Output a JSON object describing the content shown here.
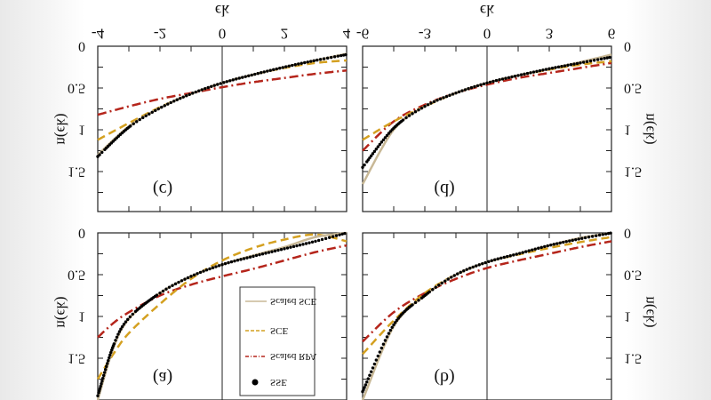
{
  "orientation": "vertically mirrored",
  "colors": {
    "sse": "#000000",
    "scaled_sce": "#c8b896",
    "sce": "#d4a020",
    "scaled_rpa": "#b5251b"
  },
  "legend": {
    "placement": "inside panel (a)",
    "items": [
      {
        "label": "Scaled SCE",
        "style": "solid",
        "color": "#c8b896"
      },
      {
        "label": "SCE",
        "style": "dashed",
        "color": "#d4a020"
      },
      {
        "label": "Scaled RPA",
        "style": "dash-dot",
        "color": "#b5251b"
      },
      {
        "label": "SSE",
        "style": "dots",
        "color": "#000000"
      }
    ]
  },
  "chart_data": [
    {
      "type": "line",
      "panel": "(c)",
      "xlabel": "ϵk",
      "ylabel": "n(ϵk)",
      "xlim": [
        -4,
        4
      ],
      "ylim": [
        0,
        2
      ],
      "xticks": [
        "-4",
        "-2",
        "0",
        "2",
        "4"
      ],
      "yticks": [
        "0",
        "0.5",
        "1",
        "1.5"
      ],
      "x": [
        -4,
        -3,
        -2,
        -1,
        0,
        1,
        2,
        3,
        4
      ],
      "series": [
        {
          "name": "SSE",
          "values": [
            1.32,
            0.97,
            0.74,
            0.57,
            0.44,
            0.34,
            0.25,
            0.17,
            0.1
          ]
        },
        {
          "name": "Scaled SCE",
          "values": [
            1.3,
            0.96,
            0.74,
            0.57,
            0.44,
            0.34,
            0.25,
            0.17,
            0.09
          ]
        },
        {
          "name": "SCE",
          "values": [
            1.12,
            0.92,
            0.73,
            0.57,
            0.44,
            0.34,
            0.26,
            0.2,
            0.17
          ]
        },
        {
          "name": "Scaled RPA",
          "values": [
            0.82,
            0.72,
            0.63,
            0.56,
            0.49,
            0.43,
            0.38,
            0.33,
            0.29
          ]
        }
      ]
    },
    {
      "type": "line",
      "panel": "(d)",
      "xlabel": "ϵk",
      "ylabel": "n(ϵk)",
      "xlim": [
        -6,
        6
      ],
      "ylim": [
        0,
        2
      ],
      "xticks": [
        "-6",
        "-3",
        "0",
        "3",
        "6"
      ],
      "yticks": [
        "0",
        "0.5",
        "1",
        "1.5"
      ],
      "x": [
        -6,
        -4.5,
        -3,
        -1.5,
        0,
        1.5,
        3,
        4.5,
        6
      ],
      "series": [
        {
          "name": "SSE",
          "values": [
            1.45,
            0.98,
            0.72,
            0.56,
            0.44,
            0.35,
            0.27,
            0.2,
            0.13
          ]
        },
        {
          "name": "Scaled SCE",
          "values": [
            1.65,
            1.0,
            0.72,
            0.56,
            0.44,
            0.35,
            0.27,
            0.19,
            0.1
          ]
        },
        {
          "name": "SCE",
          "values": [
            1.12,
            0.9,
            0.72,
            0.56,
            0.44,
            0.35,
            0.28,
            0.22,
            0.18
          ]
        },
        {
          "name": "Scaled RPA",
          "values": [
            1.25,
            0.9,
            0.7,
            0.56,
            0.46,
            0.38,
            0.32,
            0.26,
            0.2
          ]
        }
      ]
    },
    {
      "type": "line",
      "panel": "(a)",
      "ylabel": "n(ϵk)",
      "xlim": [
        -4,
        4
      ],
      "ylim": [
        0,
        2
      ],
      "yticks": [
        "0",
        "0.5",
        "1",
        "1.5"
      ],
      "x": [
        -4,
        -3.5,
        -3,
        -2,
        -1,
        0,
        1,
        2,
        3,
        4
      ],
      "series": [
        {
          "name": "SSE",
          "values": [
            1.95,
            1.35,
            1.02,
            0.72,
            0.52,
            0.38,
            0.28,
            0.19,
            0.1,
            0.0
          ]
        },
        {
          "name": "Scaled SCE",
          "values": [
            2.0,
            1.38,
            1.03,
            0.72,
            0.52,
            0.38,
            0.27,
            0.17,
            0.05,
            0.0
          ]
        },
        {
          "name": "SCE",
          "values": [
            1.75,
            1.45,
            1.2,
            0.85,
            0.55,
            0.33,
            0.18,
            0.08,
            0.02,
            0.1
          ]
        },
        {
          "name": "Scaled RPA",
          "values": [
            1.25,
            1.08,
            0.95,
            0.75,
            0.62,
            0.52,
            0.43,
            0.33,
            0.23,
            0.15
          ]
        }
      ]
    },
    {
      "type": "line",
      "panel": "(b)",
      "ylabel": "n(ϵk)",
      "xlim": [
        -6,
        6
      ],
      "ylim": [
        0,
        2
      ],
      "yticks": [
        "0",
        "0.5",
        "1",
        "1.5"
      ],
      "x": [
        -6,
        -4.5,
        -3,
        -1.5,
        0,
        1.5,
        3,
        4.5,
        6
      ],
      "series": [
        {
          "name": "SSE",
          "values": [
            1.9,
            1.1,
            0.75,
            0.5,
            0.35,
            0.25,
            0.15,
            0.07,
            0.0
          ]
        },
        {
          "name": "Scaled SCE",
          "values": [
            2.0,
            1.12,
            0.75,
            0.5,
            0.35,
            0.25,
            0.15,
            0.06,
            0.0
          ]
        },
        {
          "name": "SCE",
          "values": [
            1.45,
            1.05,
            0.72,
            0.5,
            0.35,
            0.26,
            0.18,
            0.11,
            0.05
          ]
        },
        {
          "name": "Scaled RPA",
          "values": [
            1.3,
            0.95,
            0.72,
            0.55,
            0.42,
            0.33,
            0.25,
            0.17,
            0.1
          ]
        }
      ]
    }
  ]
}
